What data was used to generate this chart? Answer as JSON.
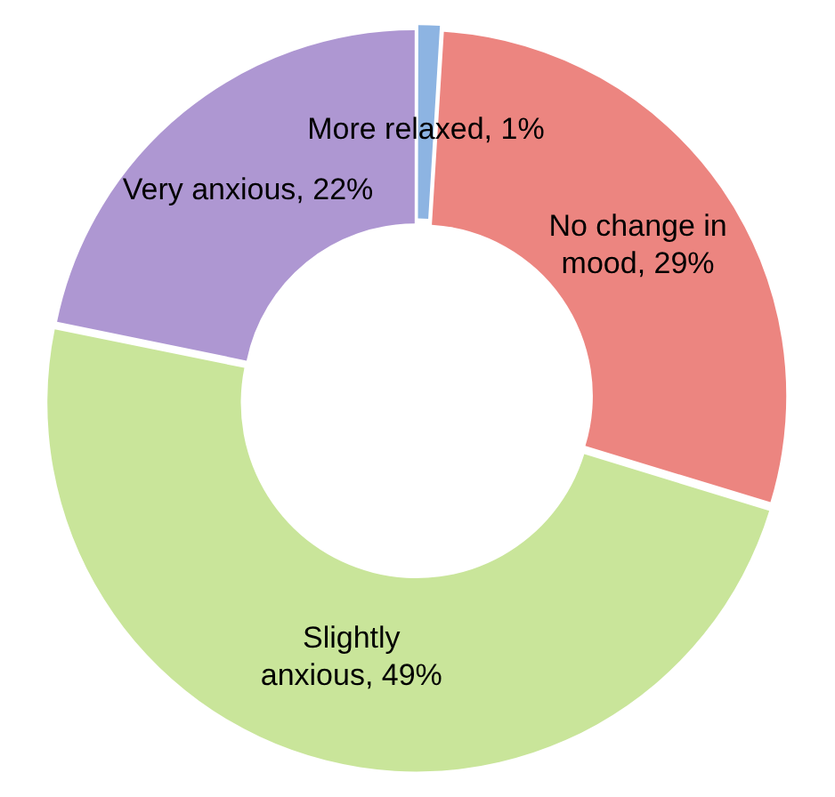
{
  "chart_data": {
    "type": "donut",
    "categories": [
      "More relaxed",
      "No change in mood",
      "Slightly anxious",
      "Very anxious"
    ],
    "values": [
      1,
      29,
      49,
      22
    ],
    "value_labels": [
      "1%",
      "29%",
      "49%",
      "22%"
    ],
    "colors": [
      "#8db4e2",
      "#ec8580",
      "#c9e59a",
      "#ae97d2"
    ],
    "legend": false
  }
}
